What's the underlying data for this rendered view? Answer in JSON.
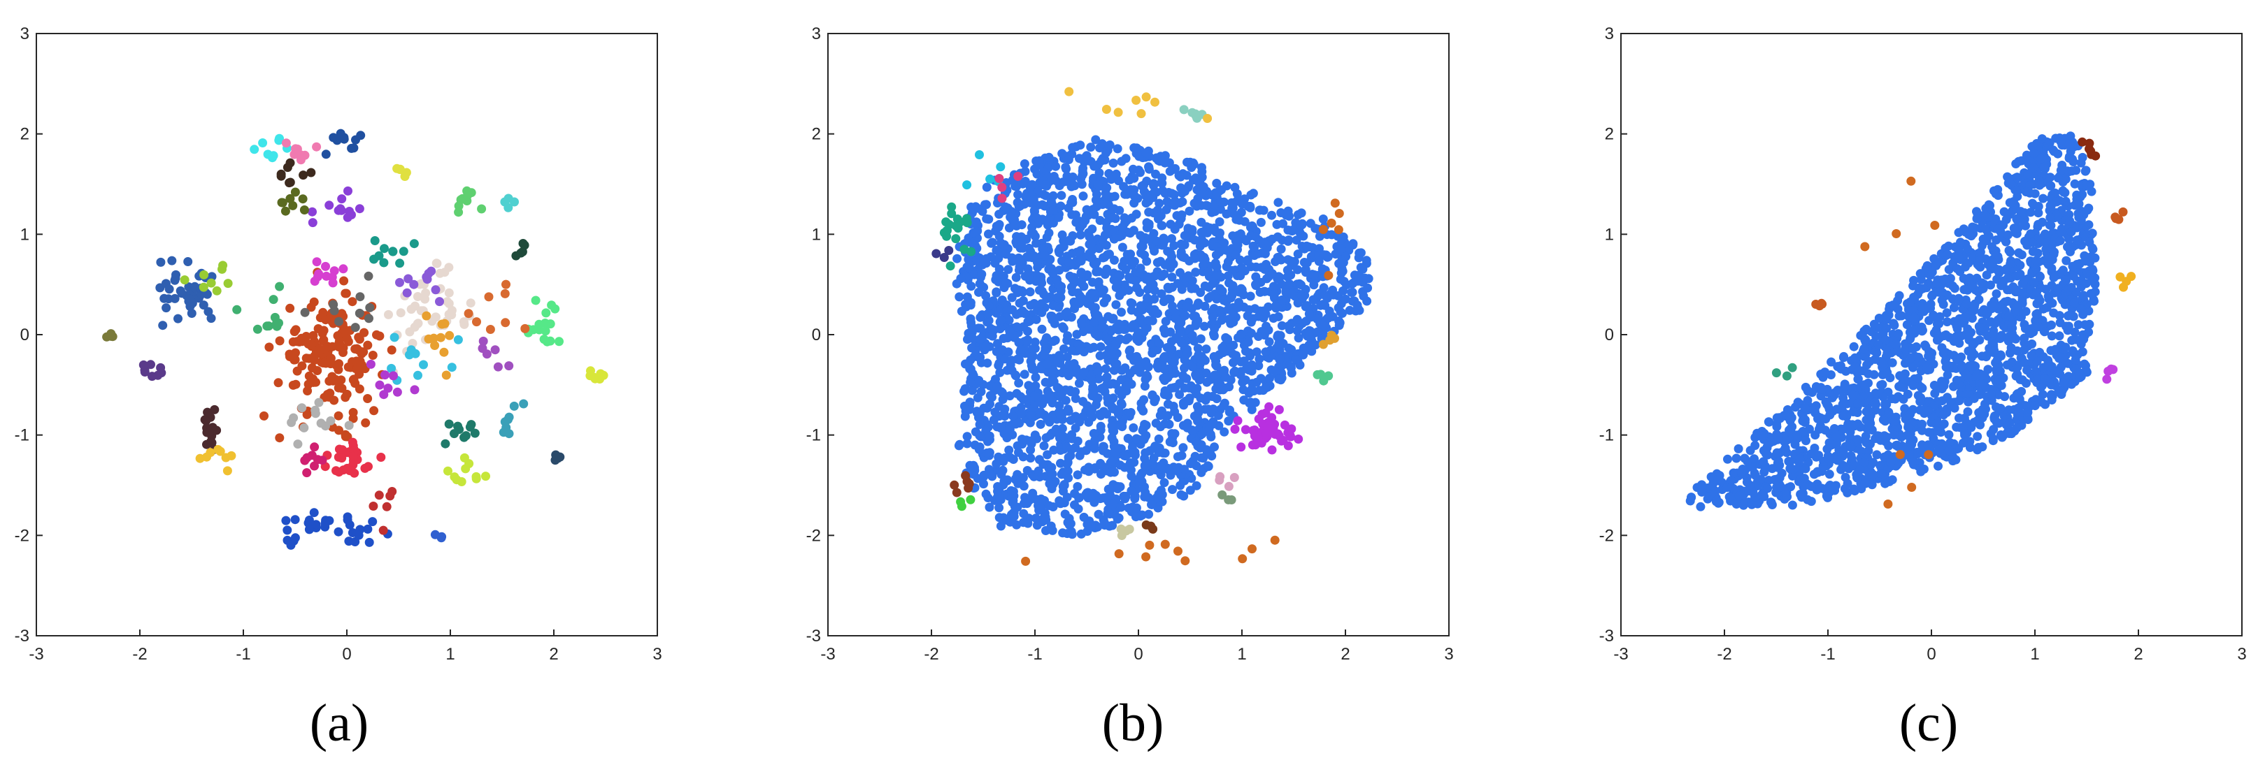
{
  "chart_data": [
    {
      "type": "scatter",
      "caption": "(a)",
      "xlim": [
        -3,
        3
      ],
      "ylim": [
        -3,
        3
      ],
      "xticks": [
        "-3",
        "-2",
        "-1",
        "0",
        "1",
        "2",
        "3"
      ],
      "yticks": [
        "-3",
        "-2",
        "-1",
        "0",
        "1",
        "2",
        "3"
      ],
      "grid": false,
      "clusters": [
        {
          "color": "#c8481e",
          "cx": -0.15,
          "cy": -0.2,
          "sx": 0.25,
          "sy": 0.3,
          "n": 170
        },
        {
          "color": "#e6d8d0",
          "cx": 0.8,
          "cy": 0.2,
          "sx": 0.18,
          "sy": 0.2,
          "n": 45
        },
        {
          "color": "#2f5fb0",
          "cx": -1.55,
          "cy": 0.4,
          "sx": 0.18,
          "sy": 0.15,
          "n": 40
        },
        {
          "color": "#1f50c8",
          "cx": -0.15,
          "cy": -1.95,
          "sx": 0.25,
          "sy": 0.08,
          "n": 30
        },
        {
          "color": "#e8314a",
          "cx": 0.05,
          "cy": -1.25,
          "sx": 0.15,
          "sy": 0.1,
          "n": 25
        },
        {
          "color": "#4b2a2e",
          "cx": -1.3,
          "cy": -0.9,
          "sx": 0.1,
          "sy": 0.12,
          "n": 16
        },
        {
          "color": "#56e888",
          "cx": 1.9,
          "cy": 0.1,
          "sx": 0.1,
          "sy": 0.12,
          "n": 16
        },
        {
          "color": "#5fd070",
          "cx": 1.15,
          "cy": 1.35,
          "sx": 0.08,
          "sy": 0.05,
          "n": 10
        },
        {
          "color": "#3fe5ea",
          "cx": -0.75,
          "cy": 1.85,
          "sx": 0.08,
          "sy": 0.05,
          "n": 8
        },
        {
          "color": "#d8e63a",
          "cx": 2.45,
          "cy": -0.42,
          "sx": 0.06,
          "sy": 0.04,
          "n": 8
        },
        {
          "color": "#8a3fd8",
          "cx": -0.05,
          "cy": 1.25,
          "sx": 0.12,
          "sy": 0.1,
          "n": 12
        },
        {
          "color": "#d63fd0",
          "cx": -0.25,
          "cy": 0.6,
          "sx": 0.1,
          "sy": 0.08,
          "n": 10
        },
        {
          "color": "#1f7a6a",
          "cx": 1.1,
          "cy": -0.95,
          "sx": 0.08,
          "sy": 0.06,
          "n": 10
        },
        {
          "color": "#c6e63a",
          "cx": 1.2,
          "cy": -1.35,
          "sx": 0.1,
          "sy": 0.1,
          "n": 10
        },
        {
          "color": "#f0c030",
          "cx": -1.2,
          "cy": -1.2,
          "sx": 0.1,
          "sy": 0.06,
          "n": 8
        },
        {
          "color": "#3aa0b8",
          "cx": 1.55,
          "cy": -0.85,
          "sx": 0.08,
          "sy": 0.1,
          "n": 8
        },
        {
          "color": "#d02070",
          "cx": -0.3,
          "cy": -1.25,
          "sx": 0.12,
          "sy": 0.06,
          "n": 8
        },
        {
          "color": "#3d2a1e",
          "cx": -0.55,
          "cy": 1.6,
          "sx": 0.08,
          "sy": 0.05,
          "n": 8
        },
        {
          "color": "#99cc33",
          "cx": -1.35,
          "cy": 0.55,
          "sx": 0.1,
          "sy": 0.08,
          "n": 8
        },
        {
          "color": "#1f4a3a",
          "cx": 1.7,
          "cy": 0.85,
          "sx": 0.04,
          "sy": 0.04,
          "n": 5
        },
        {
          "color": "#2a4a6a",
          "cx": 2.05,
          "cy": -1.25,
          "sx": 0.03,
          "sy": 0.03,
          "n": 4
        },
        {
          "color": "#7a7a3a",
          "cx": -2.3,
          "cy": -0.02,
          "sx": 0.06,
          "sy": 0.03,
          "n": 4
        },
        {
          "color": "#5a3a8a",
          "cx": -1.9,
          "cy": -0.35,
          "sx": 0.08,
          "sy": 0.06,
          "n": 8
        },
        {
          "color": "#36c0e0",
          "cx": 0.75,
          "cy": -0.25,
          "sx": 0.15,
          "sy": 0.12,
          "n": 10
        },
        {
          "color": "#8a5ad8",
          "cx": 0.7,
          "cy": 0.55,
          "sx": 0.12,
          "sy": 0.1,
          "n": 10
        },
        {
          "color": "#1a9a8a",
          "cx": 0.3,
          "cy": 0.8,
          "sx": 0.15,
          "sy": 0.12,
          "n": 10
        },
        {
          "color": "#f07ab0",
          "cx": -0.45,
          "cy": 1.85,
          "sx": 0.1,
          "sy": 0.05,
          "n": 8
        },
        {
          "color": "#2050a0",
          "cx": 0.0,
          "cy": 1.9,
          "sx": 0.12,
          "sy": 0.08,
          "n": 10
        },
        {
          "color": "#b0b0b0",
          "cx": -0.3,
          "cy": -0.8,
          "sx": 0.2,
          "sy": 0.12,
          "n": 12
        },
        {
          "color": "#5a6a20",
          "cx": -0.6,
          "cy": 1.3,
          "sx": 0.1,
          "sy": 0.08,
          "n": 8
        },
        {
          "color": "#e8a030",
          "cx": 0.9,
          "cy": -0.05,
          "sx": 0.12,
          "sy": 0.12,
          "n": 10
        },
        {
          "color": "#40b070",
          "cx": -0.8,
          "cy": 0.2,
          "sx": 0.15,
          "sy": 0.15,
          "n": 10
        },
        {
          "color": "#b03ad0",
          "cx": 0.4,
          "cy": -0.5,
          "sx": 0.12,
          "sy": 0.12,
          "n": 8
        },
        {
          "color": "#d86a30",
          "cx": 1.4,
          "cy": 0.2,
          "sx": 0.15,
          "sy": 0.15,
          "n": 8
        },
        {
          "color": "#3060d0",
          "cx": 0.9,
          "cy": -2.0,
          "sx": 0.03,
          "sy": 0.03,
          "n": 3
        },
        {
          "color": "#a050c0",
          "cx": 1.45,
          "cy": -0.2,
          "sx": 0.12,
          "sy": 0.1,
          "n": 6
        },
        {
          "color": "#e0e040",
          "cx": 0.55,
          "cy": 1.6,
          "sx": 0.06,
          "sy": 0.06,
          "n": 5
        },
        {
          "color": "#50d0d0",
          "cx": 1.55,
          "cy": 1.3,
          "sx": 0.05,
          "sy": 0.05,
          "n": 4
        },
        {
          "color": "#666666",
          "cx": 0.1,
          "cy": 0.3,
          "sx": 0.2,
          "sy": 0.15,
          "n": 10
        },
        {
          "color": "#c03030",
          "cx": 0.35,
          "cy": -1.65,
          "sx": 0.1,
          "sy": 0.1,
          "n": 6
        }
      ]
    },
    {
      "type": "scatter",
      "caption": "(b)",
      "xlim": [
        -3,
        3
      ],
      "ylim": [
        -3,
        3
      ],
      "xticks": [
        "-3",
        "-2",
        "-1",
        "0",
        "1",
        "2",
        "3"
      ],
      "yticks": [
        "-3",
        "-2",
        "-1",
        "0",
        "1",
        "2",
        "3"
      ],
      "grid": false,
      "main_cloud": {
        "color": "#2f72e8",
        "n": 2600,
        "polygon": [
          [
            -1.6,
            1.4
          ],
          [
            -1.1,
            1.75
          ],
          [
            -0.4,
            1.95
          ],
          [
            0.3,
            1.85
          ],
          [
            1.0,
            1.45
          ],
          [
            1.8,
            1.15
          ],
          [
            2.25,
            0.75
          ],
          [
            2.2,
            0.25
          ],
          [
            1.6,
            -0.3
          ],
          [
            1.0,
            -0.85
          ],
          [
            0.55,
            -1.55
          ],
          [
            0.0,
            -1.85
          ],
          [
            -0.6,
            -2.0
          ],
          [
            -1.3,
            -1.95
          ],
          [
            -1.75,
            -1.3
          ],
          [
            -1.65,
            0.0
          ],
          [
            -1.8,
            0.6
          ]
        ]
      },
      "clusters": [
        {
          "color": "#b830e0",
          "cx": 1.25,
          "cy": -0.95,
          "sx": 0.12,
          "sy": 0.12,
          "n": 45
        },
        {
          "color": "#1aa888",
          "cx": -1.8,
          "cy": 1.05,
          "sx": 0.08,
          "sy": 0.12,
          "n": 18
        },
        {
          "color": "#8ad0c0",
          "cx": 0.6,
          "cy": 2.2,
          "sx": 0.06,
          "sy": 0.03,
          "n": 6
        },
        {
          "color": "#8a3a20",
          "cx": -1.7,
          "cy": -1.5,
          "sx": 0.04,
          "sy": 0.06,
          "n": 6
        },
        {
          "color": "#e0a030",
          "cx": 1.9,
          "cy": -0.05,
          "sx": 0.05,
          "sy": 0.05,
          "n": 4
        },
        {
          "color": "#50c890",
          "cx": 1.75,
          "cy": -0.4,
          "sx": 0.05,
          "sy": 0.03,
          "n": 4
        },
        {
          "color": "#c8c8a0",
          "cx": -0.15,
          "cy": -1.95,
          "sx": 0.06,
          "sy": 0.04,
          "n": 4
        },
        {
          "color": "#d8a0c0",
          "cx": 0.8,
          "cy": -1.45,
          "sx": 0.05,
          "sy": 0.05,
          "n": 4
        },
        {
          "color": "#7a9a7a",
          "cx": 0.85,
          "cy": -1.6,
          "sx": 0.04,
          "sy": 0.04,
          "n": 3
        },
        {
          "color": "#d06a20",
          "cx": 0.2,
          "cy": -2.15,
          "sx": 0.6,
          "sy": 0.08,
          "n": 10
        },
        {
          "color": "#d06a20",
          "cx": 1.9,
          "cy": 1.0,
          "sx": 0.1,
          "sy": 0.2,
          "n": 6
        },
        {
          "color": "#f0c040",
          "cx": 0.0,
          "cy": 2.3,
          "sx": 0.4,
          "sy": 0.1,
          "n": 8
        },
        {
          "color": "#20c0e0",
          "cx": -1.5,
          "cy": 1.6,
          "sx": 0.15,
          "sy": 0.15,
          "n": 5
        },
        {
          "color": "#40d040",
          "cx": -1.7,
          "cy": -1.7,
          "sx": 0.05,
          "sy": 0.05,
          "n": 3
        },
        {
          "color": "#3a3a8a",
          "cx": -1.9,
          "cy": 0.8,
          "sx": 0.05,
          "sy": 0.05,
          "n": 3
        },
        {
          "color": "#e04080",
          "cx": -1.2,
          "cy": 1.5,
          "sx": 0.1,
          "sy": 0.1,
          "n": 4
        },
        {
          "color": "#7a3a1a",
          "cx": 0.1,
          "cy": -1.95,
          "sx": 0.05,
          "sy": 0.05,
          "n": 3
        }
      ]
    },
    {
      "type": "scatter",
      "caption": "(c)",
      "xlim": [
        -3,
        3
      ],
      "ylim": [
        -3,
        3
      ],
      "xticks": [
        "-3",
        "-2",
        "-1",
        "0",
        "1",
        "2",
        "3"
      ],
      "yticks": [
        "-3",
        "-2",
        "-1",
        "0",
        "1",
        "2",
        "3"
      ],
      "grid": false,
      "main_cloud": {
        "color": "#2f72e8",
        "n": 1900,
        "polygon": [
          [
            -2.35,
            -1.6
          ],
          [
            -1.3,
            -0.6
          ],
          [
            -0.3,
            0.4
          ],
          [
            0.5,
            1.3
          ],
          [
            1.0,
            1.95
          ],
          [
            1.4,
            2.0
          ],
          [
            1.55,
            1.5
          ],
          [
            1.6,
            0.5
          ],
          [
            1.5,
            -0.4
          ],
          [
            0.8,
            -1.0
          ],
          [
            -0.1,
            -1.4
          ],
          [
            -1.3,
            -1.7
          ],
          [
            -2.3,
            -1.75
          ]
        ]
      },
      "clusters": [
        {
          "color": "#8a2a10",
          "cx": 1.5,
          "cy": 1.85,
          "sx": 0.03,
          "sy": 0.05,
          "n": 6
        },
        {
          "color": "#c040e0",
          "cx": 1.7,
          "cy": -0.35,
          "sx": 0.03,
          "sy": 0.04,
          "n": 4
        },
        {
          "color": "#f0b020",
          "cx": 1.85,
          "cy": 0.55,
          "sx": 0.03,
          "sy": 0.05,
          "n": 4
        },
        {
          "color": "#c85a20",
          "cx": -1.1,
          "cy": 0.3,
          "sx": 0.05,
          "sy": 0.03,
          "n": 4
        },
        {
          "color": "#c85a20",
          "cx": 1.8,
          "cy": 1.2,
          "sx": 0.03,
          "sy": 0.15,
          "n": 4
        },
        {
          "color": "#30a080",
          "cx": -1.4,
          "cy": -0.4,
          "sx": 0.05,
          "sy": 0.04,
          "n": 3
        },
        {
          "color": "#d06a20",
          "cx": -0.2,
          "cy": 1.2,
          "sx": 0.3,
          "sy": 0.3,
          "n": 4
        },
        {
          "color": "#d06a20",
          "cx": -0.3,
          "cy": -1.3,
          "sx": 0.3,
          "sy": 0.2,
          "n": 4
        }
      ]
    }
  ]
}
